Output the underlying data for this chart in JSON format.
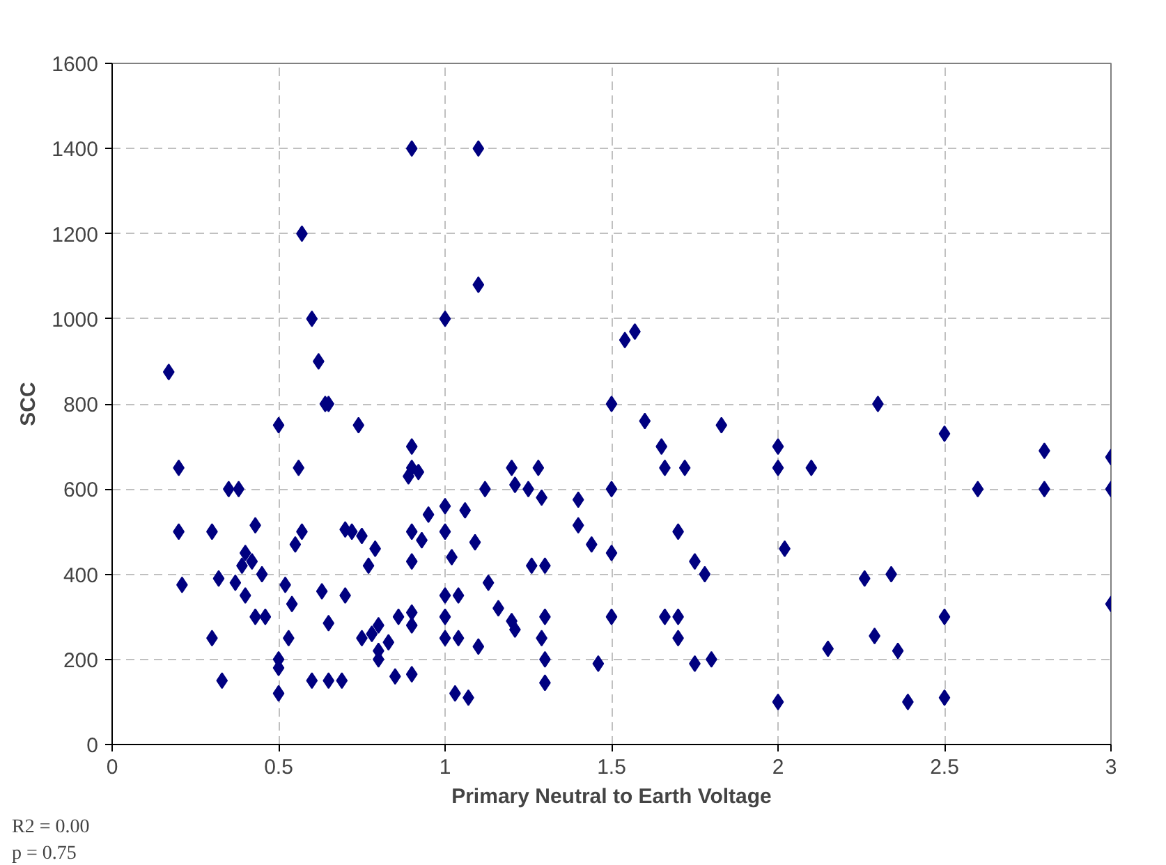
{
  "chart_data": {
    "type": "scatter",
    "xlabel": "Primary Neutral to Earth Voltage",
    "ylabel": "SCC",
    "x": [
      0.17,
      0.2,
      0.2,
      0.21,
      0.3,
      0.3,
      0.32,
      0.33,
      0.35,
      0.37,
      0.38,
      0.39,
      0.4,
      0.4,
      0.42,
      0.43,
      0.43,
      0.45,
      0.46,
      0.5,
      0.5,
      0.5,
      0.5,
      0.52,
      0.53,
      0.54,
      0.55,
      0.56,
      0.57,
      0.57,
      0.6,
      0.6,
      0.62,
      0.63,
      0.64,
      0.65,
      0.65,
      0.65,
      0.69,
      0.7,
      0.7,
      0.72,
      0.74,
      0.75,
      0.75,
      0.77,
      0.78,
      0.79,
      0.8,
      0.8,
      0.8,
      0.83,
      0.85,
      0.86,
      0.9,
      0.9,
      0.9,
      0.89,
      0.9,
      0.9,
      0.9,
      0.9,
      0.9,
      0.92,
      0.93,
      0.95,
      1.0,
      1.0,
      1.0,
      1.0,
      1.0,
      1.0,
      1.02,
      1.03,
      1.04,
      1.04,
      1.06,
      1.07,
      1.1,
      1.1,
      1.09,
      1.1,
      1.12,
      1.13,
      1.16,
      1.2,
      1.21,
      1.2,
      1.21,
      1.25,
      1.26,
      1.28,
      1.29,
      1.3,
      1.29,
      1.3,
      1.3,
      1.3,
      1.4,
      1.4,
      1.44,
      1.46,
      1.5,
      1.5,
      1.5,
      1.5,
      1.54,
      1.57,
      1.6,
      1.65,
      1.66,
      1.66,
      1.7,
      1.7,
      1.7,
      1.72,
      1.75,
      1.75,
      1.78,
      1.8,
      1.83,
      2.0,
      2.0,
      2.0,
      2.02,
      2.1,
      2.15,
      2.26,
      2.3,
      2.29,
      2.34,
      2.36,
      2.39,
      2.5,
      2.5,
      2.5,
      2.6,
      2.8,
      2.8,
      3.0,
      3.0,
      3.0
    ],
    "values": [
      875,
      650,
      500,
      375,
      500,
      250,
      390,
      150,
      600,
      380,
      600,
      420,
      450,
      350,
      430,
      515,
      300,
      400,
      300,
      750,
      200,
      180,
      120,
      375,
      250,
      330,
      470,
      650,
      500,
      1200,
      1000,
      150,
      900,
      360,
      800,
      800,
      285,
      150,
      150,
      350,
      505,
      500,
      750,
      490,
      250,
      420,
      260,
      460,
      280,
      220,
      200,
      240,
      160,
      300,
      1400,
      700,
      650,
      630,
      500,
      430,
      310,
      280,
      165,
      640,
      480,
      540,
      1000,
      560,
      500,
      350,
      300,
      250,
      440,
      120,
      350,
      250,
      550,
      110,
      1400,
      1080,
      475,
      230,
      600,
      380,
      320,
      650,
      610,
      290,
      270,
      600,
      420,
      650,
      580,
      420,
      250,
      300,
      200,
      145,
      575,
      515,
      470,
      190,
      800,
      600,
      450,
      300,
      950,
      970,
      760,
      700,
      650,
      300,
      500,
      300,
      250,
      650,
      190,
      430,
      400,
      200,
      750,
      700,
      650,
      100,
      460,
      650,
      225,
      390,
      800,
      255,
      400,
      220,
      100,
      730,
      300,
      110,
      600,
      690,
      600,
      675,
      600,
      330
    ],
    "color": "#000080",
    "marker": "diamond",
    "xlim": [
      0,
      3
    ],
    "xticks": [
      0,
      0.5,
      1,
      1.5,
      2,
      2.5,
      3
    ],
    "ylim": [
      0,
      1600
    ],
    "yticks": [
      0,
      200,
      400,
      600,
      800,
      1000,
      1200,
      1400,
      1600
    ],
    "grid": true,
    "annotations": [
      "R2 = 0.00",
      "p = 0.75"
    ]
  }
}
